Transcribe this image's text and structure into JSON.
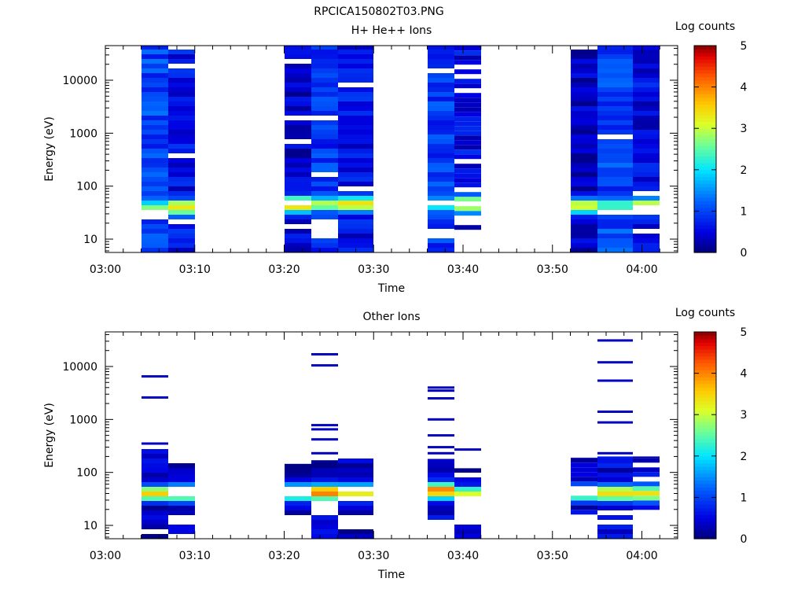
{
  "figure_title": "RPCICA150802T03.PNG",
  "chart_data": [
    {
      "type": "heatmap",
      "title": "H+ He++ Ions",
      "xlabel": "Time",
      "ylabel": "Energy (eV)",
      "x_ticks": [
        "03:00",
        "03:10",
        "03:20",
        "03:30",
        "03:40",
        "03:50",
        "04:00"
      ],
      "x_range_minutes": [
        0,
        64
      ],
      "y_ticks": [
        "10",
        "100",
        "1000",
        "10000"
      ],
      "y_range": [
        5.6,
        45000
      ],
      "y_scale": "log",
      "colorbar": {
        "label": "Log counts",
        "ticks": [
          "0",
          "1",
          "2",
          "3",
          "4",
          "5"
        ],
        "range": [
          0,
          5
        ],
        "colormap": "rainbow"
      },
      "columns": [
        {
          "start": "03:04",
          "end": "03:07",
          "seed": 11,
          "top": 45000,
          "bottom": 5.6,
          "base": 1.0,
          "peak_energy": 40,
          "peak": 2.7,
          "sigma": 0.09,
          "gap": 0.06,
          "min_lev": 0.5,
          "gap_ranges": [
            [
              26,
              32
            ]
          ]
        },
        {
          "start": "03:07",
          "end": "03:10",
          "seed": 12,
          "top": 45000,
          "bottom": 5.6,
          "base": 0.6,
          "peak_energy": 40,
          "peak": 3.4,
          "sigma": 0.12,
          "gap": 0.1,
          "min_lev": 0.25,
          "gap_ranges": [
            [
              20,
              25
            ]
          ]
        },
        {
          "start": "03:20",
          "end": "03:23",
          "seed": 21,
          "top": 45000,
          "bottom": 5.6,
          "base": 0.4,
          "peak_energy": 45,
          "peak": 3.6,
          "sigma": 0.12,
          "gap": 0.1,
          "min_lev": 0.1,
          "gap_ranges": [
            [
              15,
              20
            ]
          ]
        },
        {
          "start": "03:23",
          "end": "03:26",
          "seed": 22,
          "top": 45000,
          "bottom": 5.6,
          "base": 0.9,
          "peak_energy": 45,
          "peak": 2.9,
          "sigma": 0.12,
          "gap": 0.05,
          "min_lev": 0.4,
          "gap_ranges": [
            [
              14,
              18
            ]
          ]
        },
        {
          "start": "03:26",
          "end": "03:30",
          "seed": 23,
          "top": 45000,
          "bottom": 5.6,
          "base": 0.6,
          "peak_energy": 45,
          "peak": 3.4,
          "sigma": 0.12,
          "gap": 0.1,
          "min_lev": 0.15,
          "gap_ranges": []
        },
        {
          "start": "03:36",
          "end": "03:39",
          "seed": 31,
          "top": 45000,
          "bottom": 5.6,
          "base": 0.95,
          "peak_energy": 45,
          "peak": 2.5,
          "sigma": 0.12,
          "gap": 0.05,
          "min_lev": 0.3,
          "gap_ranges": [
            [
              11,
              15
            ]
          ]
        },
        {
          "start": "03:39",
          "end": "03:42",
          "seed": 32,
          "top": 45000,
          "bottom": 15,
          "base": 0.55,
          "peak_energy": 45,
          "peak": 3.6,
          "sigma": 0.12,
          "gap": 0.1,
          "min_lev": 0.15,
          "gap_ranges": []
        },
        {
          "start": "03:52",
          "end": "03:55",
          "seed": 41,
          "top": 45000,
          "bottom": 5.6,
          "base": 0.35,
          "peak_energy": 42,
          "peak": 3.3,
          "sigma": 0.12,
          "gap": 0.1,
          "min_lev": 0.1,
          "gap_ranges": []
        },
        {
          "start": "03:55",
          "end": "03:59",
          "seed": 42,
          "top": 45000,
          "bottom": 5.6,
          "base": 1.0,
          "peak_energy": 42,
          "peak": 2.4,
          "sigma": 0.12,
          "gap": 0.05,
          "min_lev": 0.4,
          "gap_ranges": []
        },
        {
          "start": "03:59",
          "end": "04:02",
          "seed": 43,
          "top": 45000,
          "bottom": 5.6,
          "base": 0.55,
          "peak_energy": 42,
          "peak": 3.4,
          "sigma": 0.12,
          "gap": 0.1,
          "min_lev": 0.2,
          "gap_ranges": []
        }
      ]
    },
    {
      "type": "heatmap",
      "title": "Other Ions",
      "xlabel": "Time",
      "ylabel": "Energy (eV)",
      "x_ticks": [
        "03:00",
        "03:10",
        "03:20",
        "03:30",
        "03:40",
        "03:50",
        "04:00"
      ],
      "x_range_minutes": [
        0,
        64
      ],
      "y_ticks": [
        "10",
        "100",
        "1000",
        "10000"
      ],
      "y_range": [
        5.6,
        45000
      ],
      "y_scale": "log",
      "colorbar": {
        "label": "Log counts",
        "ticks": [
          "0",
          "1",
          "2",
          "3",
          "4",
          "5"
        ],
        "range": [
          0,
          5
        ],
        "colormap": "rainbow"
      },
      "columns": [
        {
          "start": "03:04",
          "end": "03:07",
          "seed": 51,
          "top": 280,
          "bottom": 5.6,
          "base": 0.3,
          "peak_energy": 40,
          "peak": 3.4,
          "sigma": 0.12,
          "gap": 0.15,
          "min_lev": 0.05,
          "gap_ranges": [],
          "lines": [
            6500,
            2600,
            350
          ]
        },
        {
          "start": "03:07",
          "end": "03:10",
          "seed": 52,
          "top": 170,
          "bottom": 5.6,
          "base": 0.25,
          "peak_energy": 40,
          "peak": 3.3,
          "sigma": 0.12,
          "gap": 0.3,
          "min_lev": 0.05,
          "gap_ranges": [
            [
              10,
              15
            ]
          ],
          "lines": []
        },
        {
          "start": "03:20",
          "end": "03:23",
          "seed": 61,
          "top": 145,
          "bottom": 5.6,
          "base": 0.25,
          "peak_energy": 42,
          "peak": 3.4,
          "sigma": 0.12,
          "gap": 0.35,
          "min_lev": 0.05,
          "gap_ranges": [
            [
              5.6,
              16
            ]
          ],
          "lines": []
        },
        {
          "start": "03:23",
          "end": "03:26",
          "seed": 62,
          "top": 170,
          "bottom": 5.6,
          "base": 0.3,
          "peak_energy": 42,
          "peak": 4.0,
          "sigma": 0.12,
          "gap": 0.15,
          "min_lev": 0.05,
          "gap_ranges": [
            [
              15,
              24
            ]
          ],
          "lines": [
            17000,
            10500,
            780,
            650,
            420,
            230
          ]
        },
        {
          "start": "03:26",
          "end": "03:30",
          "seed": 63,
          "top": 200,
          "bottom": 5.6,
          "base": 0.25,
          "peak_energy": 42,
          "peak": 3.4,
          "sigma": 0.12,
          "gap": 0.3,
          "min_lev": 0.05,
          "gap_ranges": [
            [
              10,
              15
            ]
          ],
          "lines": []
        },
        {
          "start": "03:36",
          "end": "03:39",
          "seed": 71,
          "top": 180,
          "bottom": 5.6,
          "base": 0.4,
          "peak_energy": 45,
          "peak": 3.9,
          "sigma": 0.12,
          "gap": 0.15,
          "min_lev": 0.05,
          "gap_ranges": [],
          "lines": [
            4000,
            3500,
            2500,
            1000,
            500,
            300,
            230
          ]
        },
        {
          "start": "03:39",
          "end": "03:42",
          "seed": 72,
          "top": 120,
          "bottom": 5.6,
          "base": 0.25,
          "peak_energy": 40,
          "peak": 3.2,
          "sigma": 0.1,
          "gap": 0.3,
          "min_lev": 0.05,
          "gap_ranges": [
            [
              10,
              30
            ]
          ],
          "lines": [
            270
          ]
        },
        {
          "start": "03:52",
          "end": "03:55",
          "seed": 81,
          "top": 190,
          "bottom": 16,
          "base": 0.3,
          "peak_energy": 40,
          "peak": 3.2,
          "sigma": 0.12,
          "gap": 0.3,
          "min_lev": 0.05,
          "gap_ranges": [],
          "lines": []
        },
        {
          "start": "03:55",
          "end": "03:59",
          "seed": 82,
          "top": 200,
          "bottom": 5.6,
          "base": 0.5,
          "peak_energy": 40,
          "peak": 3.6,
          "sigma": 0.12,
          "gap": 0.15,
          "min_lev": 0.1,
          "gap_ranges": [
            [
              15,
              20
            ]
          ],
          "lines": [
            31000,
            12000,
            5400,
            1400,
            880,
            230
          ]
        },
        {
          "start": "03:59",
          "end": "04:02",
          "seed": 83,
          "top": 200,
          "bottom": 16,
          "base": 0.5,
          "peak_energy": 40,
          "peak": 3.4,
          "sigma": 0.12,
          "gap": 0.15,
          "min_lev": 0.1,
          "gap_ranges": [],
          "lines": []
        }
      ]
    }
  ]
}
